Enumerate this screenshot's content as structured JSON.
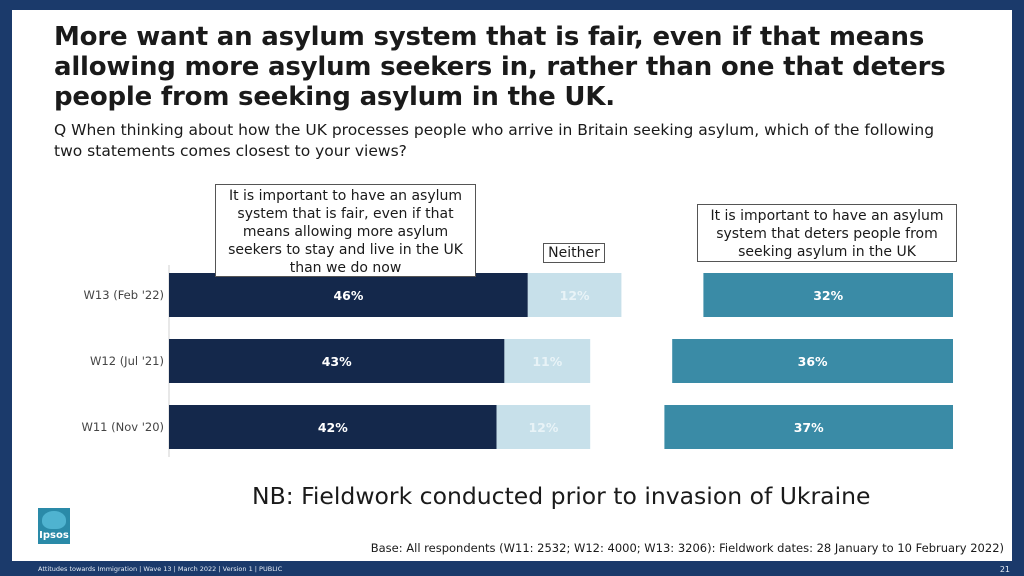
{
  "title": "More want an asylum system that is fair, even if that means allowing more asylum seekers in, rather than one that deters people from seeking asylum in the UK.",
  "question": "Q When thinking about how the UK processes people who arrive in Britain seeking asylum, which of the following two statements comes closest to your views?",
  "callouts": {
    "fair": "It is important to have an asylum system that is fair, even if that means allowing more asylum seekers to stay and live in the UK than we do now",
    "neither": "Neither",
    "deter": "It is important to have an asylum system that deters people from seeking asylum in the UK"
  },
  "note": "NB: Fieldwork conducted prior to invasion of Ukraine",
  "base": "Base: All respondents (W11: 2532; W12: 4000; W13: 3206): Fieldwork dates: 28 January to 10 February 2022)",
  "logo": "Ipsos",
  "footer": "Attitudes towards Immigration | Wave 13 | March 2022 | Version 1 | PUBLIC",
  "page_number": "21",
  "colors": {
    "fair": "#14284b",
    "neither": "#c7e0ea",
    "deter": "#3a8ba6",
    "neither_label": "#e8f3f7"
  },
  "chart_data": {
    "type": "bar",
    "orientation": "horizontal",
    "stacked": true,
    "categories": [
      "W13 (Feb '22)",
      "W12 (Jul '21)",
      "W11 (Nov '20)"
    ],
    "series": [
      {
        "name": "It is important to have an asylum system that is fair, even if that means allowing more asylum seekers to stay and live in the UK than we do now",
        "values": [
          46,
          43,
          42
        ],
        "labels": [
          "46%",
          "43%",
          "42%"
        ]
      },
      {
        "name": "Neither",
        "values": [
          12,
          11,
          12
        ],
        "labels": [
          "12%",
          "11%",
          "12%"
        ]
      },
      {
        "name": "It is important to have an asylum system that deters people from seeking asylum in the UK",
        "values": [
          32,
          36,
          37
        ],
        "labels": [
          "32%",
          "36%",
          "37%"
        ]
      }
    ],
    "xlim": [
      0,
      100
    ],
    "grid": false,
    "legend": "callout boxes above bars"
  }
}
